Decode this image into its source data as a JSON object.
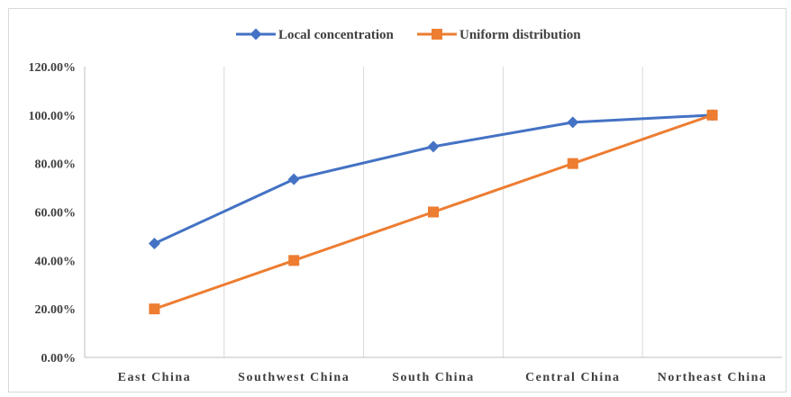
{
  "chart_data": {
    "type": "line",
    "categories": [
      "East China",
      "Southwest China",
      "South China",
      "Central China",
      "Northeast China"
    ],
    "series": [
      {
        "name": "Local concentration",
        "color": "#4472c4",
        "marker": "diamond",
        "values": [
          47,
          73.5,
          87,
          97,
          100
        ]
      },
      {
        "name": "Uniform distribution",
        "color": "#ed7d31",
        "marker": "square",
        "values": [
          20,
          40,
          60,
          80,
          100
        ]
      }
    ],
    "y_ticks": [
      "0.00%",
      "20.00%",
      "40.00%",
      "60.00%",
      "80.00%",
      "100.00%",
      "120.00%"
    ],
    "ylim": [
      0,
      120
    ],
    "ytick_step": 20,
    "y_unit": "%",
    "grid": "vertical lines between categories",
    "legend_position": "top-center",
    "axis_color": "#bfbfbf",
    "grid_color": "#d9d9d9"
  }
}
